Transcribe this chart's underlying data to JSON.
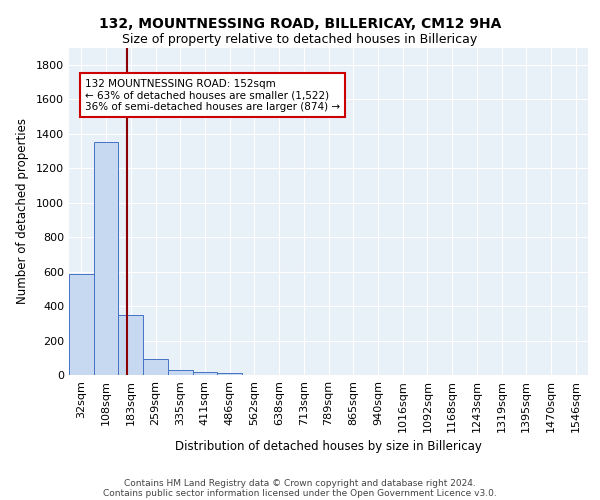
{
  "title1": "132, MOUNTNESSING ROAD, BILLERICAY, CM12 9HA",
  "title2": "Size of property relative to detached houses in Billericay",
  "xlabel": "Distribution of detached houses by size in Billericay",
  "ylabel": "Number of detached properties",
  "categories": [
    "32sqm",
    "108sqm",
    "183sqm",
    "259sqm",
    "335sqm",
    "411sqm",
    "486sqm",
    "562sqm",
    "638sqm",
    "713sqm",
    "789sqm",
    "865sqm",
    "940sqm",
    "1016sqm",
    "1092sqm",
    "1168sqm",
    "1243sqm",
    "1319sqm",
    "1395sqm",
    "1470sqm",
    "1546sqm"
  ],
  "values": [
    585,
    1352,
    350,
    90,
    28,
    20,
    10,
    0,
    0,
    0,
    0,
    0,
    0,
    0,
    0,
    0,
    0,
    0,
    0,
    0,
    0
  ],
  "bar_color": "#c6d9f0",
  "bar_edge_color": "#4472c4",
  "vline_x": 1.85,
  "vline_color": "#8b0000",
  "annotation_line1": "132 MOUNTNESSING ROAD: 152sqm",
  "annotation_line2": "← 63% of detached houses are smaller (1,522)",
  "annotation_line3": "36% of semi-detached houses are larger (874) →",
  "annotation_box_color": "#ffffff",
  "annotation_box_edge": "#cc0000",
  "ylim": [
    0,
    1900
  ],
  "yticks": [
    0,
    200,
    400,
    600,
    800,
    1000,
    1200,
    1400,
    1600,
    1800
  ],
  "bg_color": "#e8f0f8",
  "grid_color": "#ffffff",
  "footer_line1": "Contains HM Land Registry data © Crown copyright and database right 2024.",
  "footer_line2": "Contains public sector information licensed under the Open Government Licence v3.0."
}
